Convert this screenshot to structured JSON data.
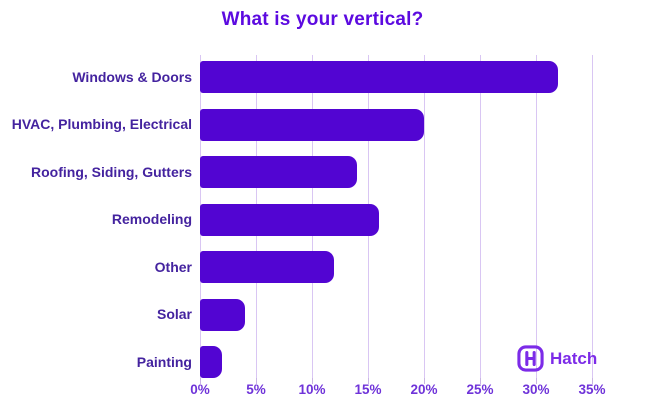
{
  "title": "What is your vertical?",
  "brand": {
    "name": "Hatch",
    "icon": "hatch-h-logo",
    "color": "#7c2be8"
  },
  "colors": {
    "background": "#ffffff",
    "bar": "#5205d2",
    "title": "#5c0ae0",
    "category_label": "#44239f",
    "axis_label": "#6f33d9",
    "gridline": "#d9c6f3",
    "tick": "#c9b6e3"
  },
  "chart_data": {
    "type": "bar",
    "orientation": "horizontal",
    "title": "What is your vertical?",
    "categories": [
      "Windows & Doors",
      "HVAC, Plumbing, Electrical",
      "Roofing, Siding, Gutters",
      "Remodeling",
      "Other",
      "Solar",
      "Painting"
    ],
    "values": [
      32,
      20,
      14,
      16,
      12,
      4,
      2
    ],
    "unit": "%",
    "xlabel": "",
    "ylabel": "",
    "xlim": [
      0,
      35
    ],
    "x_tick_step": 5,
    "x_tick_labels": [
      "0%",
      "5%",
      "10%",
      "15%",
      "20%",
      "25%",
      "30%",
      "35%"
    ],
    "grid": true,
    "grid_direction": "vertical",
    "legend": "none"
  }
}
